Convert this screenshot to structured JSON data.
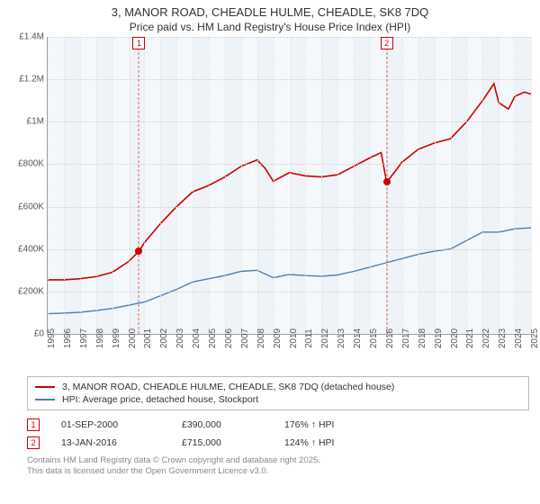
{
  "title": "3, MANOR ROAD, CHEADLE HULME, CHEADLE, SK8 7DQ",
  "subtitle": "Price paid vs. HM Land Registry's House Price Index (HPI)",
  "chart": {
    "type": "line",
    "background_color": "#ffffff",
    "grid_color": "#cfcfcf",
    "vgrid_color": "#e4e4e4",
    "axis_color": "#a0a0a0",
    "label_color": "#555555",
    "label_fontsize": 10,
    "x_years": [
      1995,
      1996,
      1997,
      1998,
      1999,
      2000,
      2001,
      2002,
      2003,
      2004,
      2005,
      2006,
      2007,
      2008,
      2009,
      2010,
      2011,
      2012,
      2013,
      2014,
      2015,
      2016,
      2017,
      2018,
      2019,
      2020,
      2021,
      2022,
      2023,
      2024,
      2025
    ],
    "xlim": [
      1995,
      2025
    ],
    "ylim": [
      0,
      1400000
    ],
    "yticks": [
      0,
      200000,
      400000,
      600000,
      800000,
      1000000,
      1200000,
      1400000
    ],
    "ytick_labels": [
      "£0",
      "£200K",
      "£400K",
      "£600K",
      "£800K",
      "£1M",
      "£1.2M",
      "£1.4M"
    ],
    "band_color_a": "#f5f8fb",
    "band_color_b": "#eef3f8",
    "series": [
      {
        "name": "property",
        "color": "#cc0000",
        "width": 1.6,
        "points": [
          [
            1995,
            255000
          ],
          [
            1996,
            255000
          ],
          [
            1997,
            260000
          ],
          [
            1998,
            270000
          ],
          [
            1999,
            290000
          ],
          [
            2000,
            340000
          ],
          [
            2000.67,
            390000
          ],
          [
            2001,
            430000
          ],
          [
            2002,
            520000
          ],
          [
            2003,
            600000
          ],
          [
            2004,
            670000
          ],
          [
            2005,
            700000
          ],
          [
            2006,
            740000
          ],
          [
            2007,
            790000
          ],
          [
            2008,
            820000
          ],
          [
            2008.5,
            780000
          ],
          [
            2009,
            720000
          ],
          [
            2010,
            760000
          ],
          [
            2011,
            745000
          ],
          [
            2012,
            740000
          ],
          [
            2013,
            750000
          ],
          [
            2014,
            790000
          ],
          [
            2015,
            830000
          ],
          [
            2015.7,
            855000
          ],
          [
            2016.04,
            715000
          ],
          [
            2016.5,
            760000
          ],
          [
            2017,
            810000
          ],
          [
            2018,
            870000
          ],
          [
            2019,
            900000
          ],
          [
            2020,
            920000
          ],
          [
            2021,
            1000000
          ],
          [
            2022,
            1100000
          ],
          [
            2022.7,
            1180000
          ],
          [
            2023,
            1090000
          ],
          [
            2023.6,
            1060000
          ],
          [
            2024,
            1120000
          ],
          [
            2024.6,
            1140000
          ],
          [
            2025,
            1130000
          ]
        ]
      },
      {
        "name": "hpi",
        "color": "#4a7fb0",
        "width": 1.4,
        "points": [
          [
            1995,
            95000
          ],
          [
            1996,
            98000
          ],
          [
            1997,
            102000
          ],
          [
            1998,
            110000
          ],
          [
            1999,
            120000
          ],
          [
            2000,
            135000
          ],
          [
            2001,
            150000
          ],
          [
            2002,
            180000
          ],
          [
            2003,
            210000
          ],
          [
            2004,
            245000
          ],
          [
            2005,
            260000
          ],
          [
            2006,
            275000
          ],
          [
            2007,
            295000
          ],
          [
            2008,
            300000
          ],
          [
            2009,
            265000
          ],
          [
            2010,
            280000
          ],
          [
            2011,
            275000
          ],
          [
            2012,
            272000
          ],
          [
            2013,
            278000
          ],
          [
            2014,
            295000
          ],
          [
            2015,
            315000
          ],
          [
            2016,
            335000
          ],
          [
            2017,
            355000
          ],
          [
            2018,
            375000
          ],
          [
            2019,
            390000
          ],
          [
            2020,
            400000
          ],
          [
            2021,
            440000
          ],
          [
            2022,
            480000
          ],
          [
            2023,
            480000
          ],
          [
            2024,
            495000
          ],
          [
            2025,
            500000
          ]
        ]
      }
    ],
    "markers": [
      {
        "n": "1",
        "x": 2000.67,
        "y": 390000,
        "color": "#cc0000"
      },
      {
        "n": "2",
        "x": 2016.04,
        "y": 715000,
        "color": "#cc0000"
      }
    ]
  },
  "legend": {
    "items": [
      {
        "color": "#cc0000",
        "label": "3, MANOR ROAD, CHEADLE HULME, CHEADLE, SK8 7DQ (detached house)"
      },
      {
        "color": "#4a7fb0",
        "label": "HPI: Average price, detached house, Stockport"
      }
    ]
  },
  "transactions": [
    {
      "n": "1",
      "date": "01-SEP-2000",
      "price": "£390,000",
      "hpi": "176% ↑ HPI"
    },
    {
      "n": "2",
      "date": "13-JAN-2016",
      "price": "£715,000",
      "hpi": "124% ↑ HPI"
    }
  ],
  "footnote_line1": "Contains HM Land Registry data © Crown copyright and database right 2025.",
  "footnote_line2": "This data is licensed under the Open Government Licence v3.0."
}
